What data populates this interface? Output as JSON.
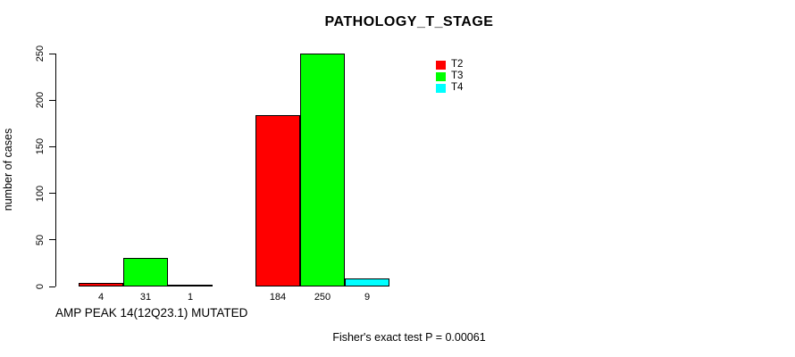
{
  "chart_data": {
    "type": "bar",
    "title": "PATHOLOGY_T_STAGE",
    "ylabel": "number of cases",
    "xlabel": "AMP PEAK 14(12Q23.1) MUTATED",
    "annotation": "Fisher's exact test P = 0.00061",
    "ylim": [
      0,
      250
    ],
    "yticks": [
      0,
      50,
      100,
      150,
      200,
      250
    ],
    "grid": false,
    "legend_position": "top-right",
    "series_colors": {
      "T2": "#ff0000",
      "T3": "#00ff00",
      "T4": "#00ffff"
    },
    "legend": [
      {
        "label": "T2",
        "color": "#ff0000"
      },
      {
        "label": "T3",
        "color": "#00ff00"
      },
      {
        "label": "T4",
        "color": "#00ffff"
      }
    ],
    "groups": [
      {
        "bars": [
          {
            "series": "T2",
            "value": 4,
            "label": "4",
            "color": "#ff0000"
          },
          {
            "series": "T3",
            "value": 31,
            "label": "31",
            "color": "#00ff00"
          },
          {
            "series": "T4",
            "value": 1,
            "label": "1",
            "color": "#00ffff"
          }
        ]
      },
      {
        "bars": [
          {
            "series": "T2",
            "value": 184,
            "label": "184",
            "color": "#ff0000"
          },
          {
            "series": "T3",
            "value": 250,
            "label": "250",
            "color": "#00ff00"
          },
          {
            "series": "T4",
            "value": 9,
            "label": "9",
            "color": "#00ffff"
          }
        ]
      }
    ]
  },
  "colors": {
    "axis": "#000000",
    "background": "#ffffff",
    "text": "#000000"
  }
}
